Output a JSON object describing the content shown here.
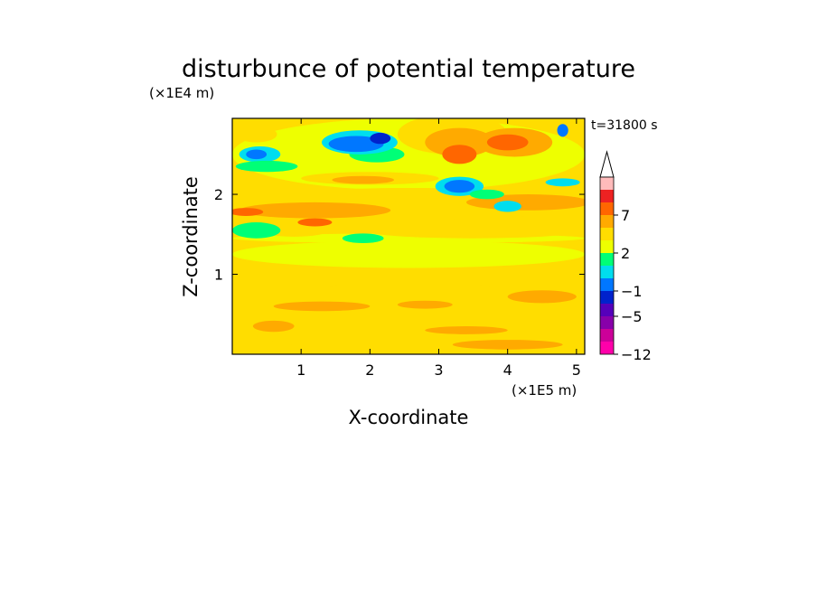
{
  "chart_data": {
    "type": "heatmap",
    "title": "disturbunce of potential temperature",
    "time_label": "t=31800 s",
    "xlabel": "X-coordinate",
    "ylabel": "Z-coordinate",
    "x_scale_label": "(×1E5 m)",
    "y_scale_label": "(×1E4 m)",
    "xlim": [
      0,
      5.12
    ],
    "ylim": [
      0,
      2.95
    ],
    "x_ticks": [
      1,
      2,
      3,
      4,
      5
    ],
    "y_ticks": [
      1,
      2
    ],
    "x_tick_labels": [
      "1",
      "2",
      "3",
      "4",
      "5"
    ],
    "y_tick_labels": [
      "1",
      "2"
    ],
    "colorbar": {
      "levels": [
        -12,
        -9,
        -7,
        -5,
        -3,
        -1,
        0,
        1,
        2,
        3,
        5,
        7,
        9,
        12
      ],
      "labeled_levels": [
        "7",
        "2",
        "−1",
        "−5",
        "−12"
      ],
      "colors": [
        "#ff00aa",
        "#cc0099",
        "#8800aa",
        "#5500bb",
        "#0022cc",
        "#0077ff",
        "#00ddee",
        "#00ff77",
        "#eeff00",
        "#ffdd00",
        "#ffaa00",
        "#ff6600",
        "#ee2222",
        "#ffbbbb"
      ]
    },
    "regions": [
      {
        "cat": 9,
        "x": 2.56,
        "z": 0.45,
        "rx": 2.56,
        "rz": 0.45
      },
      {
        "cat": 10,
        "x": 0.6,
        "z": 0.35,
        "rx": 0.3,
        "rz": 0.07
      },
      {
        "cat": 10,
        "x": 3.4,
        "z": 0.3,
        "rx": 0.6,
        "rz": 0.05
      },
      {
        "cat": 10,
        "x": 4.5,
        "z": 0.72,
        "rx": 0.5,
        "rz": 0.08
      },
      {
        "cat": 10,
        "x": 4.0,
        "z": 0.12,
        "rx": 0.8,
        "rz": 0.06
      },
      {
        "cat": 10,
        "x": 1.3,
        "z": 0.6,
        "rx": 0.7,
        "rz": 0.06
      },
      {
        "cat": 10,
        "x": 2.8,
        "z": 0.62,
        "rx": 0.4,
        "rz": 0.05
      },
      {
        "cat": 8,
        "x": 2.56,
        "z": 1.25,
        "rx": 2.56,
        "rz": 0.17
      },
      {
        "cat": 8,
        "x": 2.56,
        "z": 1.45,
        "rx": 2.56,
        "rz": 0.06
      },
      {
        "cat": 8,
        "x": 2.56,
        "z": 2.5,
        "rx": 2.56,
        "rz": 0.45
      },
      {
        "cat": 9,
        "x": 3.5,
        "z": 1.55,
        "rx": 1.6,
        "rz": 0.1
      },
      {
        "cat": 9,
        "x": 0.9,
        "z": 1.55,
        "rx": 0.5,
        "rz": 0.08
      },
      {
        "cat": 7,
        "x": 0.35,
        "z": 1.55,
        "rx": 0.35,
        "rz": 0.1
      },
      {
        "cat": 7,
        "x": 1.9,
        "z": 1.45,
        "rx": 0.3,
        "rz": 0.06
      },
      {
        "cat": 9,
        "x": 2.56,
        "z": 1.88,
        "rx": 2.56,
        "rz": 0.2
      },
      {
        "cat": 10,
        "x": 1.2,
        "z": 1.8,
        "rx": 1.1,
        "rz": 0.1
      },
      {
        "cat": 10,
        "x": 4.3,
        "z": 1.9,
        "rx": 0.9,
        "rz": 0.1
      },
      {
        "cat": 11,
        "x": 0.2,
        "z": 1.78,
        "rx": 0.25,
        "rz": 0.05
      },
      {
        "cat": 11,
        "x": 1.2,
        "z": 1.65,
        "rx": 0.25,
        "rz": 0.05
      },
      {
        "cat": 9,
        "x": 2.0,
        "z": 2.2,
        "rx": 1.0,
        "rz": 0.08
      },
      {
        "cat": 10,
        "x": 1.9,
        "z": 2.18,
        "rx": 0.45,
        "rz": 0.05
      },
      {
        "cat": 9,
        "x": 3.2,
        "z": 2.75,
        "rx": 0.8,
        "rz": 0.25
      },
      {
        "cat": 10,
        "x": 3.3,
        "z": 2.65,
        "rx": 0.5,
        "rz": 0.18
      },
      {
        "cat": 11,
        "x": 3.3,
        "z": 2.5,
        "rx": 0.25,
        "rz": 0.12
      },
      {
        "cat": 10,
        "x": 4.1,
        "z": 2.65,
        "rx": 0.55,
        "rz": 0.18
      },
      {
        "cat": 11,
        "x": 4.0,
        "z": 2.65,
        "rx": 0.3,
        "rz": 0.1
      },
      {
        "cat": 9,
        "x": 0.35,
        "z": 2.75,
        "rx": 0.3,
        "rz": 0.1
      },
      {
        "cat": 7,
        "x": 2.1,
        "z": 2.5,
        "rx": 0.4,
        "rz": 0.1
      },
      {
        "cat": 6,
        "x": 1.85,
        "z": 2.65,
        "rx": 0.55,
        "rz": 0.15
      },
      {
        "cat": 5,
        "x": 1.8,
        "z": 2.63,
        "rx": 0.4,
        "rz": 0.1
      },
      {
        "cat": 4,
        "x": 2.15,
        "z": 2.7,
        "rx": 0.15,
        "rz": 0.07
      },
      {
        "cat": 6,
        "x": 0.4,
        "z": 2.5,
        "rx": 0.3,
        "rz": 0.1
      },
      {
        "cat": 5,
        "x": 0.35,
        "z": 2.5,
        "rx": 0.15,
        "rz": 0.06
      },
      {
        "cat": 7,
        "x": 0.5,
        "z": 2.35,
        "rx": 0.45,
        "rz": 0.07
      },
      {
        "cat": 6,
        "x": 3.3,
        "z": 2.1,
        "rx": 0.35,
        "rz": 0.12
      },
      {
        "cat": 5,
        "x": 3.3,
        "z": 2.1,
        "rx": 0.22,
        "rz": 0.08
      },
      {
        "cat": 6,
        "x": 4.0,
        "z": 1.85,
        "rx": 0.2,
        "rz": 0.07
      },
      {
        "cat": 6,
        "x": 4.8,
        "z": 2.15,
        "rx": 0.25,
        "rz": 0.05
      },
      {
        "cat": 5,
        "x": 4.8,
        "z": 2.8,
        "rx": 0.08,
        "rz": 0.08
      },
      {
        "cat": 7,
        "x": 3.7,
        "z": 2.0,
        "rx": 0.25,
        "rz": 0.06
      }
    ]
  }
}
